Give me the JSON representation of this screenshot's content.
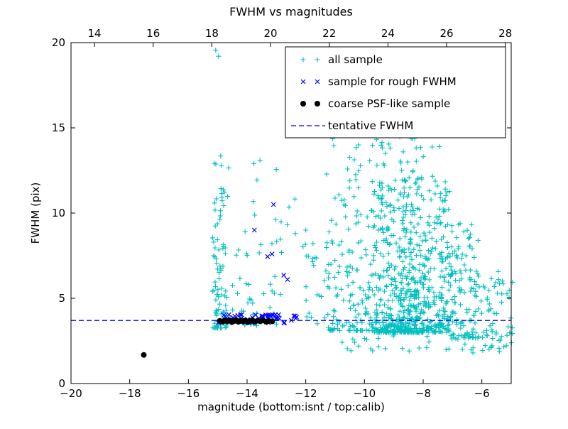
{
  "title": "FWHM vs magnitudes",
  "axes": {
    "xlabel": "magnitude (bottom:isnt / top:calib)",
    "ylabel": "FWHM (pix)",
    "xlim": [
      -20,
      -5
    ],
    "ylim": [
      0,
      20
    ],
    "xticks_bottom": [
      -20,
      -18,
      -16,
      -14,
      -12,
      -10,
      -8,
      -6
    ],
    "xticks_top": [
      14,
      16,
      18,
      20,
      22,
      24,
      26,
      28
    ],
    "calib_offset": 33.2,
    "yticks": [
      0,
      5,
      10,
      15,
      20
    ]
  },
  "legend": {
    "items": [
      {
        "label": "all sample",
        "marker": "plus",
        "color": "#00bfbf"
      },
      {
        "label": "sample for rough FWHM",
        "marker": "x",
        "color": "#0000ff"
      },
      {
        "label": "coarse PSF-like sample",
        "marker": "dot",
        "color": "#000000"
      },
      {
        "label": "tentative FWHM",
        "marker": "dash",
        "color": "#0000ff"
      }
    ]
  },
  "chart_data": {
    "type": "scatter",
    "title": "FWHM vs magnitudes",
    "xlabel": "magnitude (bottom:isnt / top:calib)",
    "ylabel": "FWHM (pix)",
    "xlim": [
      -20,
      -5
    ],
    "ylim": [
      0,
      20
    ],
    "grid": false,
    "legend_position": "upper right",
    "tentative_fwhm": 3.7,
    "series": [
      {
        "name": "all sample",
        "marker": "plus",
        "color": "#00bfbf",
        "z": 0,
        "seed": 42,
        "clusters": [
          {
            "x": [
              -15.18,
              -14.66
            ],
            "y": [
              3.25,
              13.0
            ],
            "n": 90,
            "bias": 2.0
          },
          {
            "x": [
              -14.6,
              -13.9
            ],
            "y": [
              3.4,
              9.0
            ],
            "n": 18,
            "bias": 1.8
          },
          {
            "x": [
              -13.9,
              -12.3
            ],
            "y": [
              3.4,
              13.0
            ],
            "n": 34,
            "bias": 2.0
          },
          {
            "x": [
              -12.3,
              -11.3
            ],
            "y": [
              3.3,
              8.5
            ],
            "n": 22,
            "bias": 1.7
          },
          {
            "x": [
              -11.3,
              -9.7
            ],
            "y": [
              3.1,
              14.5
            ],
            "n": 160,
            "bias": 2.3
          },
          {
            "x": [
              -9.7,
              -7.1
            ],
            "y": [
              3.0,
              12.0
            ],
            "n": 600,
            "bias": 2.2
          },
          {
            "x": [
              -9.6,
              -7.6
            ],
            "y": [
              12.0,
              15.3
            ],
            "n": 26,
            "bias": 1.0
          },
          {
            "x": [
              -8.8,
              -8.15
            ],
            "y": [
              3.0,
              15.5
            ],
            "n": 110,
            "bias": 2.8
          },
          {
            "x": [
              -7.1,
              -6.1
            ],
            "y": [
              2.6,
              9.5
            ],
            "n": 120,
            "bias": 1.6
          },
          {
            "x": [
              -6.1,
              -4.95
            ],
            "y": [
              2.0,
              6.6
            ],
            "n": 55,
            "bias": 1.2
          },
          {
            "x": [
              -10.8,
              -5.3
            ],
            "y": [
              1.8,
              3.05
            ],
            "n": 40,
            "bias": 1.0
          }
        ],
        "extra_points": [
          [
            -15.07,
            19.55
          ],
          [
            -14.97,
            19.2
          ],
          [
            -14.9,
            13.35
          ],
          [
            -14.63,
            12.65
          ],
          [
            -13.77,
            12.9
          ],
          [
            -13.56,
            13.1
          ],
          [
            -12.57,
            10.35
          ],
          [
            -12.0,
            9.0
          ],
          [
            -8.02,
            15.5
          ],
          [
            -8.48,
            15.8
          ],
          [
            -7.45,
            13.9
          ],
          [
            -7.3,
            14.55
          ],
          [
            -9.3,
            15.0
          ],
          [
            -10.2,
            14.0
          ]
        ]
      },
      {
        "name": "tentative FWHM",
        "type": "hline",
        "y": 3.7,
        "linestyle": "dashed",
        "color": "#0000ff",
        "z": 1
      },
      {
        "name": "sample for rough FWHM",
        "marker": "x",
        "color": "#0000ff",
        "z": 2,
        "seed": 7,
        "clusters": [
          {
            "x": [
              -15.0,
              -12.25
            ],
            "y": [
              3.55,
              4.05
            ],
            "n": 58,
            "bias": 1.0
          }
        ],
        "extra_points": [
          [
            -13.1,
            10.5
          ],
          [
            -13.75,
            9.0
          ],
          [
            -13.15,
            7.6
          ],
          [
            -13.3,
            7.45
          ],
          [
            -12.75,
            6.35
          ],
          [
            -12.62,
            6.1
          ]
        ]
      },
      {
        "name": "coarse PSF-like sample",
        "marker": "dot",
        "color": "#000000",
        "z": 3,
        "points": [
          [
            -14.93,
            3.68
          ],
          [
            -14.84,
            3.62
          ],
          [
            -14.76,
            3.7
          ],
          [
            -14.68,
            3.64
          ],
          [
            -14.6,
            3.71
          ],
          [
            -14.52,
            3.6
          ],
          [
            -14.45,
            3.67
          ],
          [
            -14.38,
            3.73
          ],
          [
            -14.3,
            3.62
          ],
          [
            -14.22,
            3.69
          ],
          [
            -14.14,
            3.64
          ],
          [
            -14.06,
            3.7
          ],
          [
            -13.98,
            3.6
          ],
          [
            -13.9,
            3.67
          ],
          [
            -13.82,
            3.72
          ],
          [
            -13.73,
            3.63
          ],
          [
            -13.64,
            3.69
          ],
          [
            -13.55,
            3.65
          ],
          [
            -13.45,
            3.7
          ],
          [
            -13.35,
            3.63
          ],
          [
            -13.25,
            3.67
          ],
          [
            -13.14,
            3.65
          ],
          [
            -17.52,
            1.68
          ]
        ]
      }
    ]
  }
}
